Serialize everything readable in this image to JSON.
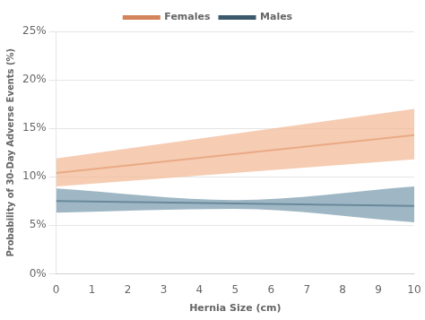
{
  "chart_data": {
    "type": "line",
    "xlabel": "Hernia Size (cm)",
    "ylabel": "Probability of 30-Day Adverse Events (%)",
    "xlim": [
      0,
      10
    ],
    "xticks": [
      0,
      1,
      2,
      3,
      4,
      5,
      6,
      7,
      8,
      9,
      10
    ],
    "ylim": [
      0,
      0.25
    ],
    "yticks": [
      {
        "value": 0.0,
        "label": "0%"
      },
      {
        "value": 0.05,
        "label": "5%"
      },
      {
        "value": 0.1,
        "label": "10%"
      },
      {
        "value": 0.15,
        "label": "15%"
      },
      {
        "value": 0.2,
        "label": "20%"
      },
      {
        "value": 0.25,
        "label": "25%"
      }
    ],
    "grid": "y",
    "legend": "top",
    "series": [
      {
        "name": "Females",
        "color": "#D4845A",
        "x": [
          0,
          10
        ],
        "values": [
          0.104,
          0.143
        ],
        "ci_x": [
          0,
          10
        ],
        "ci_lower": [
          0.09,
          0.118
        ],
        "ci_upper": [
          0.119,
          0.17
        ],
        "ci_color": "#F2B896"
      },
      {
        "name": "Males",
        "color": "#3D5A6C",
        "x": [
          0,
          10
        ],
        "values": [
          0.075,
          0.07
        ],
        "ci_x": [
          0,
          5,
          10
        ],
        "ci_lower": [
          0.063,
          0.067,
          0.053
        ],
        "ci_upper": [
          0.088,
          0.076,
          0.09
        ],
        "ci_color": "#7A9BAD"
      }
    ]
  }
}
